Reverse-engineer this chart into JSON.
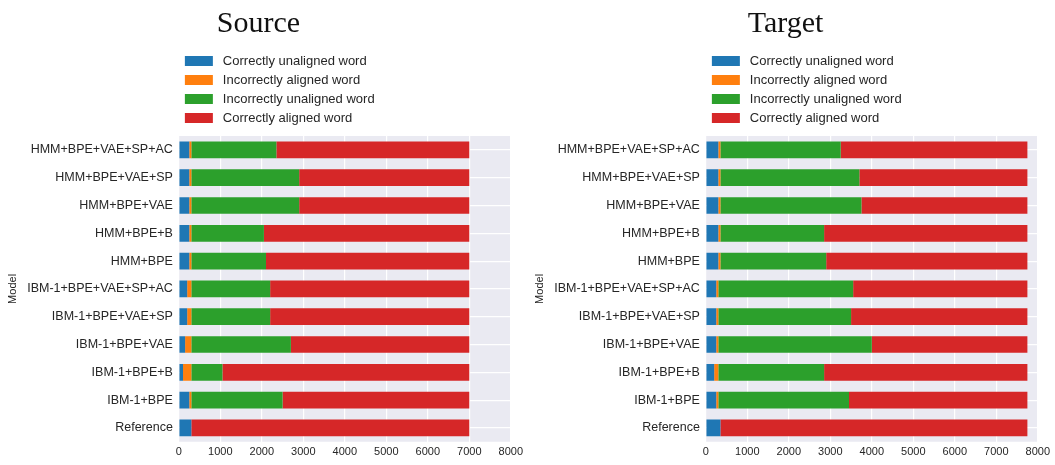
{
  "chart_data": [
    {
      "type": "bar",
      "orientation": "horizontal",
      "stacked": true,
      "title": "Source",
      "ylabel": "Model",
      "legend": "top",
      "grid": true,
      "categories": [
        "HMM+BPE+VAE+SP+AC",
        "HMM+BPE+VAE+SP",
        "HMM+BPE+VAE",
        "HMM+BPE+B",
        "HMM+BPE",
        "IBM-1+BPE+VAE+SP+AC",
        "IBM-1+BPE+VAE+SP",
        "IBM-1+BPE+VAE",
        "IBM-1+BPE+B",
        "IBM-1+BPE",
        "Reference"
      ],
      "series": [
        {
          "name": "Correctly unaligned word",
          "color": "#1f77b4",
          "values": [
            250,
            250,
            250,
            250,
            250,
            200,
            200,
            150,
            100,
            250,
            300
          ]
        },
        {
          "name": "Incorrectly aligned word",
          "color": "#ff7f0e",
          "values": [
            50,
            50,
            50,
            50,
            50,
            100,
            100,
            150,
            200,
            50,
            0
          ]
        },
        {
          "name": "Incorrectly unaligned word",
          "color": "#2ca02c",
          "values": [
            2050,
            2600,
            2600,
            1750,
            1800,
            1900,
            1900,
            2400,
            750,
            2200,
            0
          ]
        },
        {
          "name": "Correctly aligned word",
          "color": "#d62728",
          "values": [
            4650,
            4100,
            4100,
            4950,
            4900,
            4800,
            4800,
            4300,
            5950,
            4500,
            6700
          ]
        }
      ],
      "xlim": [
        0,
        8000
      ],
      "xticks": [
        0,
        1000,
        2000,
        3000,
        4000,
        5000,
        6000,
        7000,
        8000
      ]
    },
    {
      "type": "bar",
      "orientation": "horizontal",
      "stacked": true,
      "title": "Target",
      "ylabel": "Model",
      "legend": "top",
      "grid": true,
      "categories": [
        "HMM+BPE+VAE+SP+AC",
        "HMM+BPE+VAE+SP",
        "HMM+BPE+VAE",
        "HMM+BPE+B",
        "HMM+BPE",
        "IBM-1+BPE+VAE+SP+AC",
        "IBM-1+BPE+VAE+SP",
        "IBM-1+BPE+VAE",
        "IBM-1+BPE+B",
        "IBM-1+BPE",
        "Reference"
      ],
      "series": [
        {
          "name": "Correctly unaligned word",
          "color": "#1f77b4",
          "values": [
            300,
            300,
            300,
            300,
            300,
            250,
            250,
            250,
            200,
            250,
            350
          ]
        },
        {
          "name": "Incorrectly aligned word",
          "color": "#ff7f0e",
          "values": [
            50,
            50,
            50,
            50,
            50,
            50,
            50,
            50,
            100,
            50,
            0
          ]
        },
        {
          "name": "Incorrectly unaligned word",
          "color": "#2ca02c",
          "values": [
            2900,
            3350,
            3400,
            2500,
            2550,
            3250,
            3200,
            3700,
            2550,
            3150,
            0
          ]
        },
        {
          "name": "Correctly aligned word",
          "color": "#d62728",
          "values": [
            4500,
            4050,
            4000,
            4900,
            4850,
            4200,
            4250,
            3750,
            4900,
            4300,
            7400
          ]
        }
      ],
      "xlim": [
        0,
        8000
      ],
      "xticks": [
        0,
        1000,
        2000,
        3000,
        4000,
        5000,
        6000,
        7000,
        8000
      ]
    }
  ]
}
